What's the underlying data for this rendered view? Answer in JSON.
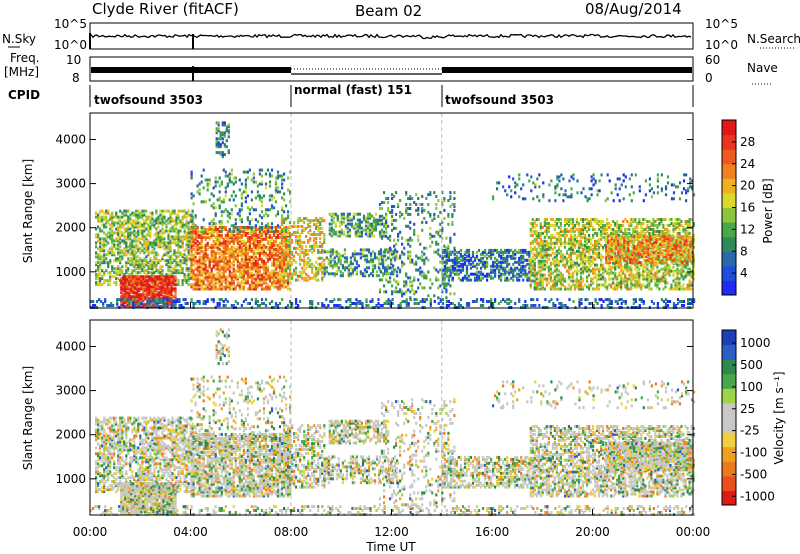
{
  "header": {
    "station": "Clyde River (fitACF)",
    "beam": "Beam 02",
    "date": "08/Aug/2014"
  },
  "strips": {
    "nsky_label": "N.Sky",
    "nsearch_label": "N.Search",
    "freq_label_1": "Freq.",
    "freq_label_2": "[MHz]",
    "nave_label": "Nave",
    "cpid_label": "CPID",
    "nsky_ticks": [
      "10^5",
      "10^0"
    ],
    "nsearch_ticks": [
      "10^5",
      "10^0"
    ],
    "freq_ticks": [
      "10",
      "8"
    ],
    "nave_ticks": [
      "60",
      "0"
    ],
    "cpid_segments": [
      {
        "label": "twofsound 3503",
        "start_h": 0,
        "end_h": 8
      },
      {
        "label": "normal (fast) 151",
        "start_h": 8,
        "end_h": 14
      },
      {
        "label": "twofsound 3503",
        "start_h": 14,
        "end_h": 24
      }
    ]
  },
  "chart_data": [
    {
      "type": "heatmap",
      "title": "",
      "ylabel": "Slant Range [km]",
      "ylim": [
        180,
        4600
      ],
      "yticks": [
        "1000",
        "2000",
        "3000",
        "4000"
      ],
      "colorbar_label": "Power [dB]",
      "colorbar_ticks": [
        "4",
        "8",
        "12",
        "16",
        "20",
        "24",
        "28"
      ],
      "colorbar_colors": [
        "#1f2bf0",
        "#1f4fd8",
        "#2a6aa8",
        "#2f8a5a",
        "#4aa84a",
        "#8cc63f",
        "#d9d92a",
        "#f0b020",
        "#f08020",
        "#ee5a1e",
        "#e83420",
        "#e01818"
      ]
    },
    {
      "type": "heatmap",
      "title": "",
      "ylabel": "Slant Range [km]",
      "ylim": [
        180,
        4600
      ],
      "yticks": [
        "1000",
        "2000",
        "3000",
        "4000"
      ],
      "colorbar_label": "Velocity [m s⁻¹]",
      "colorbar_ticks": [
        "1000",
        "500",
        "100",
        "25",
        "-25",
        "-100",
        "-500",
        "-1000"
      ],
      "colorbar_colors": [
        "#1c3fb8",
        "#2a5fc8",
        "#2e8a4c",
        "#4aa84a",
        "#9fd34a",
        "#c8c8c8",
        "#c8c8c8",
        "#f0d040",
        "#f0a020",
        "#ee7a1e",
        "#e8501e",
        "#e01818"
      ]
    }
  ],
  "x_axis": {
    "label": "Time UT",
    "xlim_hours": [
      0,
      24
    ],
    "ticks": [
      "00:00",
      "04:00",
      "08:00",
      "12:00",
      "16:00",
      "20:00",
      "00:00"
    ]
  }
}
